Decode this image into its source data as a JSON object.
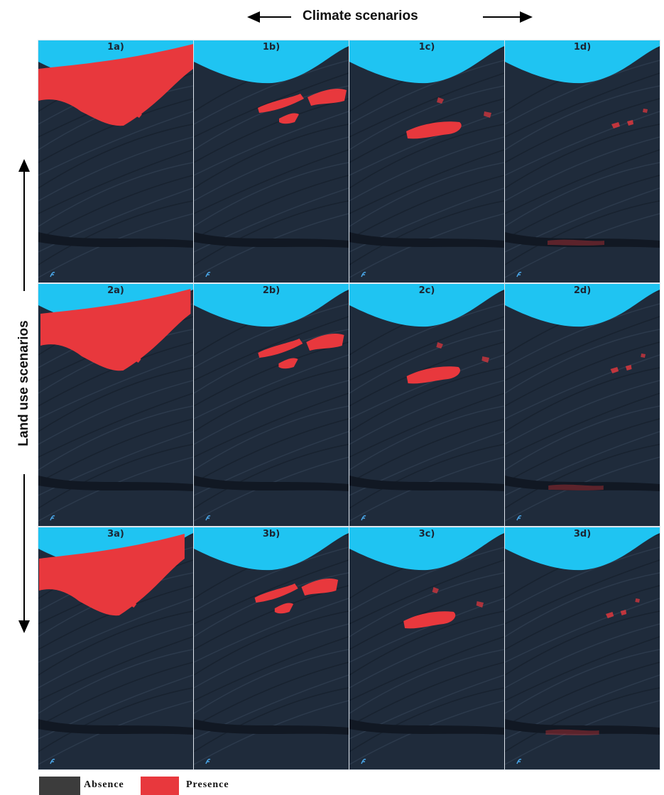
{
  "header": {
    "x_axis_label": "Climate scenarios",
    "y_axis_label": "Land use scenarios"
  },
  "panels": [
    "1a)",
    "1b)",
    "1c)",
    "1d)",
    "2a)",
    "2b)",
    "2c)",
    "2d)",
    "3a)",
    "3b)",
    "3c)",
    "3d)"
  ],
  "legend": [
    "Absence",
    "Presence"
  ]
}
